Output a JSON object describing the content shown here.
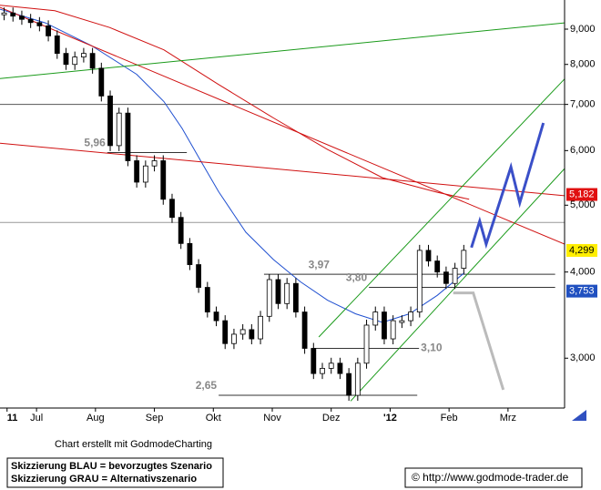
{
  "chart_data": {
    "type": "candlestick",
    "log_scale": true,
    "xlim": [
      -0.62,
      8.96
    ],
    "xticks": [
      {
        "value": -0.5,
        "label": "11"
      },
      {
        "value": 0,
        "label": "Jul"
      },
      {
        "value": 1,
        "label": "Aug"
      },
      {
        "value": 2,
        "label": "Sep"
      },
      {
        "value": 3,
        "label": "Okt"
      },
      {
        "value": 4,
        "label": "Nov"
      },
      {
        "value": 5,
        "label": "Dez"
      },
      {
        "value": 6,
        "label": "'12"
      },
      {
        "value": 7,
        "label": "Feb"
      },
      {
        "value": 8,
        "label": "Mrz"
      }
    ],
    "ylim": [
      2.54,
      9.92
    ],
    "yticks": [
      {
        "value": 3,
        "label": "3,000"
      },
      {
        "value": 4,
        "label": "4,000"
      },
      {
        "value": 5,
        "label": "5,000"
      },
      {
        "value": 6,
        "label": "6,000"
      },
      {
        "value": 7,
        "label": "7,000"
      },
      {
        "value": 8,
        "label": "8,000"
      },
      {
        "value": 9,
        "label": "9,000"
      }
    ],
    "x": [
      -0.55,
      -0.4,
      -0.25,
      -0.1,
      0.05,
      0.2,
      0.35,
      0.5,
      0.65,
      0.8,
      0.95,
      1.1,
      1.25,
      1.4,
      1.55,
      1.7,
      1.85,
      2.0,
      2.15,
      2.3,
      2.45,
      2.6,
      2.75,
      2.9,
      3.05,
      3.2,
      3.35,
      3.5,
      3.65,
      3.8,
      3.95,
      4.1,
      4.25,
      4.4,
      4.55,
      4.7,
      4.85,
      5.0,
      5.15,
      5.3,
      5.45,
      5.6,
      5.75,
      5.9,
      6.05,
      6.2,
      6.35,
      6.5,
      6.65,
      6.8,
      6.95,
      7.1,
      7.25
    ],
    "values": [
      9.5,
      9.4,
      9.3,
      9.2,
      9.1,
      8.8,
      8.3,
      8.0,
      8.2,
      8.3,
      7.9,
      7.2,
      6.1,
      6.8,
      5.8,
      5.4,
      5.7,
      5.8,
      5.1,
      4.8,
      4.4,
      4.1,
      3.8,
      3.5,
      3.4,
      3.15,
      3.25,
      3.3,
      3.2,
      3.45,
      3.9,
      3.6,
      3.85,
      3.5,
      3.1,
      2.85,
      2.9,
      2.95,
      2.85,
      2.65,
      2.95,
      3.35,
      3.5,
      3.2,
      3.4,
      3.4,
      3.5,
      4.3,
      4.15,
      4.0,
      3.85,
      4.05,
      4.3
    ],
    "overlays": [
      {
        "color": "#1f4fd0",
        "width": 1,
        "x": [
          -0.62,
          0.15,
          0.93,
          1.7,
          2.16,
          2.47,
          2.78,
          3.09,
          3.55,
          4.02,
          4.48,
          4.94,
          5.41,
          5.87,
          6.33,
          6.8,
          7.26
        ],
        "values": [
          9.62,
          9.19,
          8.52,
          7.74,
          7.07,
          6.46,
          5.81,
          5.23,
          4.57,
          4.17,
          3.87,
          3.64,
          3.48,
          3.38,
          3.48,
          3.7,
          3.99
        ]
      },
      {
        "color": "#d01010",
        "width": 1,
        "x": [
          -0.62,
          0.31,
          1.24,
          2.16,
          3.09,
          4.02,
          4.94,
          5.87,
          6.8,
          7.34
        ],
        "values": [
          9.75,
          9.57,
          9.05,
          8.4,
          7.48,
          6.69,
          6.02,
          5.48,
          5.22,
          5.1
        ]
      },
      {
        "color": "#d01010",
        "width": 1,
        "x": [
          -0.62,
          8.96
        ],
        "values": [
          9.68,
          4.39
        ]
      },
      {
        "color": "#d01010",
        "width": 1,
        "x": [
          -0.62,
          8.96
        ],
        "values": [
          6.15,
          5.16
        ]
      },
      {
        "color": "#1a9a1a",
        "width": 1,
        "x": [
          -0.62,
          8.96
        ],
        "values": [
          7.63,
          9.19
        ]
      },
      {
        "color": "#1a9a1a",
        "width": 1,
        "x": [
          5.33,
          8.96
        ],
        "values": [
          2.6,
          5.65
        ]
      },
      {
        "color": "#1a9a1a",
        "width": 1,
        "x": [
          4.79,
          8.96
        ],
        "values": [
          3.22,
          7.62
        ]
      },
      {
        "color": "#3a4fc8",
        "width": 3,
        "x": [
          7.38,
          7.52,
          7.63,
          8.05,
          8.2,
          8.6
        ],
        "values": [
          4.34,
          4.74,
          4.39,
          5.68,
          5.04,
          6.58
        ]
      },
      {
        "color": "#bbbbbb",
        "width": 3,
        "x": [
          7.07,
          7.41,
          7.92
        ],
        "values": [
          3.73,
          3.73,
          2.7
        ]
      }
    ],
    "hlines": [
      {
        "value": 7.0,
        "color": "#555555"
      },
      {
        "value": 4.72,
        "color": "#999999"
      }
    ],
    "levels": [
      {
        "value": 5.96,
        "label": "5,96",
        "from": 1.2,
        "to": 2.55
      },
      {
        "value": 3.97,
        "label": "3,97",
        "from": 3.86,
        "to": 8.8
      },
      {
        "value": 3.8,
        "label": "3,80",
        "from": 5.64,
        "to": 8.8
      },
      {
        "value": 3.1,
        "label": "3,10",
        "from": 4.71,
        "to": 6.49
      },
      {
        "value": 2.65,
        "label": "2,65",
        "from": 3.09,
        "to": 6.46
      }
    ],
    "price_tags": [
      {
        "value": 5.182,
        "label": "5,182",
        "color": "#e01010",
        "text_color": "#ffffff"
      },
      {
        "value": 4.299,
        "label": "4,299",
        "color": "#ffee00",
        "text_color": "#000000"
      },
      {
        "value": 3.753,
        "label": "3,753",
        "color": "#2050c0",
        "text_color": "#ffffff"
      }
    ],
    "credit": "Chart erstellt mit GodmodeCharting",
    "legend_box": [
      "Skizzierung BLAU = bevorzugtes Szenario",
      "Skizzierung GRAU = Alternativszenario"
    ],
    "copyright": "© http://www.godmode-trader.de"
  }
}
